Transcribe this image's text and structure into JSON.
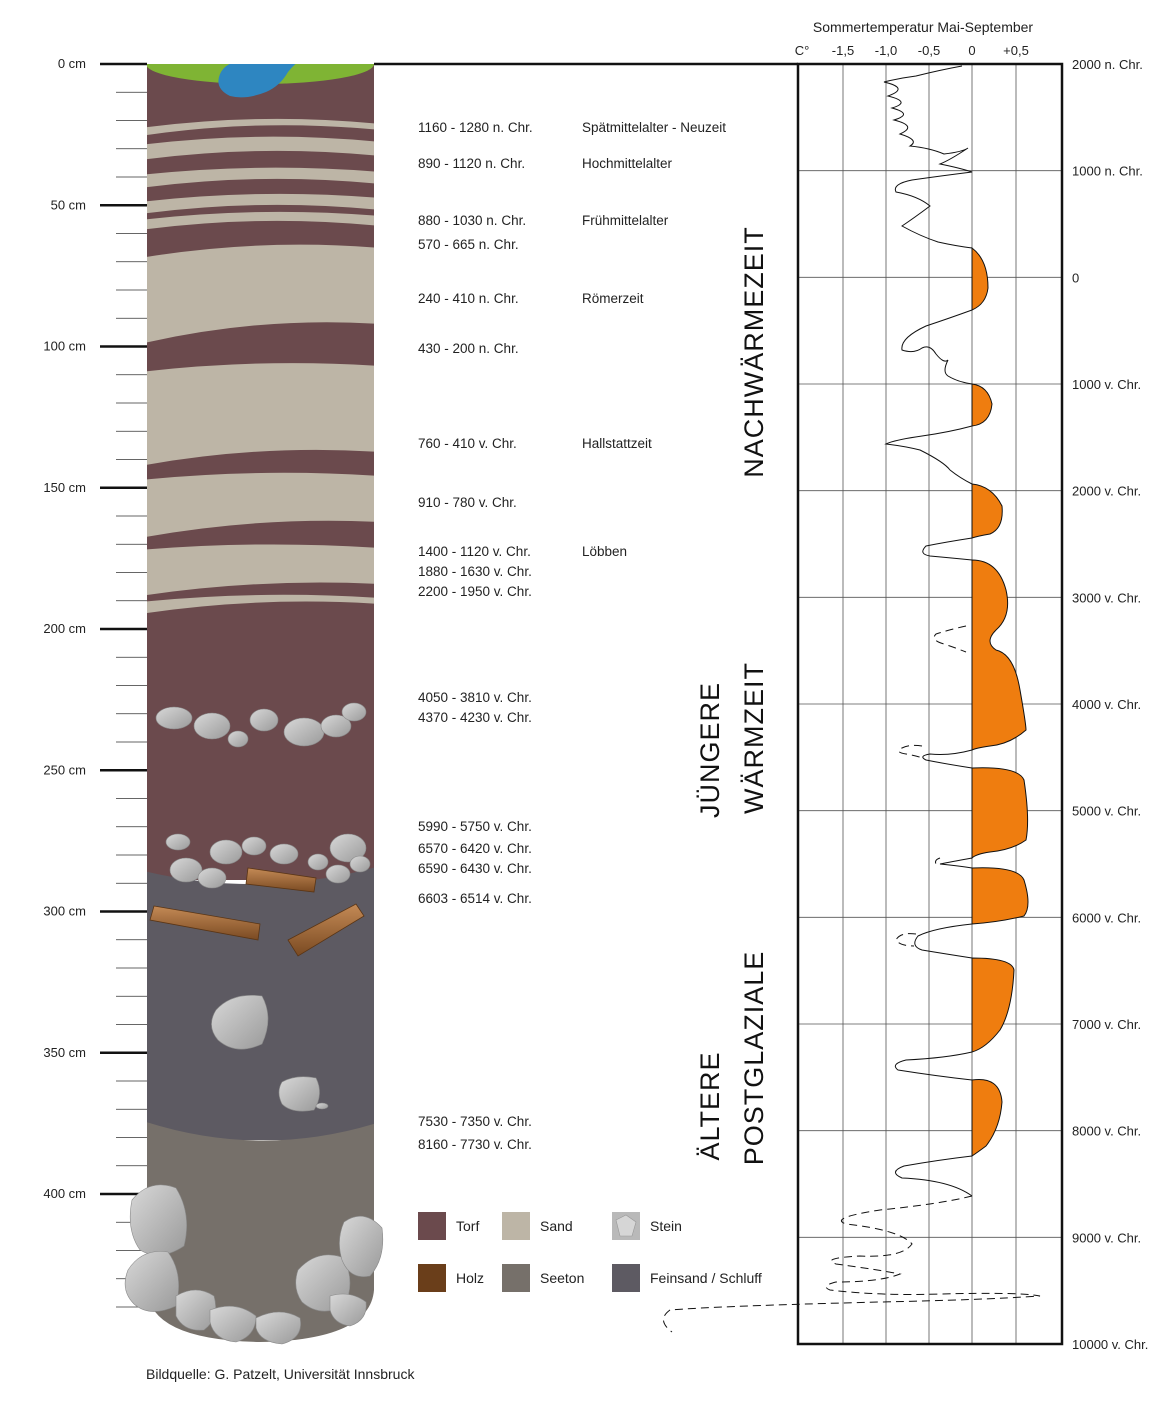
{
  "depth_labels": [
    "0 cm",
    "50 cm",
    "100 cm",
    "150 cm",
    "200 cm",
    "250 cm",
    "300 cm",
    "350 cm",
    "400 cm"
  ],
  "dates": [
    {
      "range": "1160 - 1280 n. Chr.",
      "period": "Spätmittelalter - Neuzeit"
    },
    {
      "range": "890 - 1120 n. Chr.",
      "period": "Hochmittelalter"
    },
    {
      "range": "880 - 1030 n. Chr.",
      "period": "Frühmittelalter"
    },
    {
      "range": "570 - 665 n. Chr.",
      "period": ""
    },
    {
      "range": "240 - 410 n. Chr.",
      "period": "Römerzeit"
    },
    {
      "range": "430 - 200 n. Chr.",
      "period": ""
    },
    {
      "range": "760 - 410 v. Chr.",
      "period": "Hallstattzeit"
    },
    {
      "range": "910 - 780 v. Chr.",
      "period": ""
    },
    {
      "range": "1400 - 1120 v. Chr.",
      "period": "Löbben"
    },
    {
      "range": "1880 - 1630 v. Chr.",
      "period": ""
    },
    {
      "range": "2200 - 1950 v. Chr.",
      "period": ""
    },
    {
      "range": "4050 - 3810 v. Chr.",
      "period": ""
    },
    {
      "range": "4370 - 4230 v. Chr.",
      "period": ""
    },
    {
      "range": "5990 - 5750 v. Chr.",
      "period": ""
    },
    {
      "range": "6570 - 6420 v. Chr.",
      "period": ""
    },
    {
      "range": "6590 - 6430 v. Chr.",
      "period": ""
    },
    {
      "range": "6603 - 6514 v. Chr.",
      "period": ""
    },
    {
      "range": "7530 - 7350 v. Chr.",
      "period": ""
    },
    {
      "range": "8160 - 7730 v. Chr.",
      "period": ""
    }
  ],
  "periods": {
    "nachwaermezeit": "NACHWÄRMEZEIT",
    "juengere_line1": "JÜNGERE",
    "juengere_line2": "WÄRMZEIT",
    "aeltere_line1": "ÄLTERE",
    "aeltere_line2": "POSTGLAZIALE"
  },
  "legend": [
    {
      "label": "Torf",
      "color": "#6b4a4d"
    },
    {
      "label": "Sand",
      "color": "#bdb5a6"
    },
    {
      "label": "Stein",
      "color": "#b9b9b9"
    },
    {
      "label": "Holz",
      "color": "#6a3e1a"
    },
    {
      "label": "Seeton",
      "color": "#76706a"
    },
    {
      "label": "Feinsand / Schluff",
      "color": "#5d5a62"
    }
  ],
  "temp_chart": {
    "title": "Sommertemperatur Mai-September",
    "unit": "C°",
    "x_ticks": [
      "-1,5",
      "-1,0",
      "-0,5",
      "0",
      "+0,5"
    ],
    "y_ticks": [
      "2000 n. Chr.",
      "1000 n. Chr.",
      "0",
      "1000 v. Chr.",
      "2000 v. Chr.",
      "3000 v. Chr.",
      "4000 v. Chr.",
      "5000 v. Chr.",
      "6000 v. Chr.",
      "7000 v. Chr.",
      "8000 v. Chr.",
      "9000 v. Chr.",
      "10000 v. Chr."
    ],
    "warm_color": "#ef7d0f"
  },
  "source": "Bildquelle: G. Patzelt, Universität Innsbruck",
  "colors": {
    "torf": "#6b4a4d",
    "sand": "#bdb5a6",
    "feinsand": "#5d5a62",
    "seeton": "#76706a",
    "grass": "#7fb434",
    "water": "#2e86c1"
  }
}
